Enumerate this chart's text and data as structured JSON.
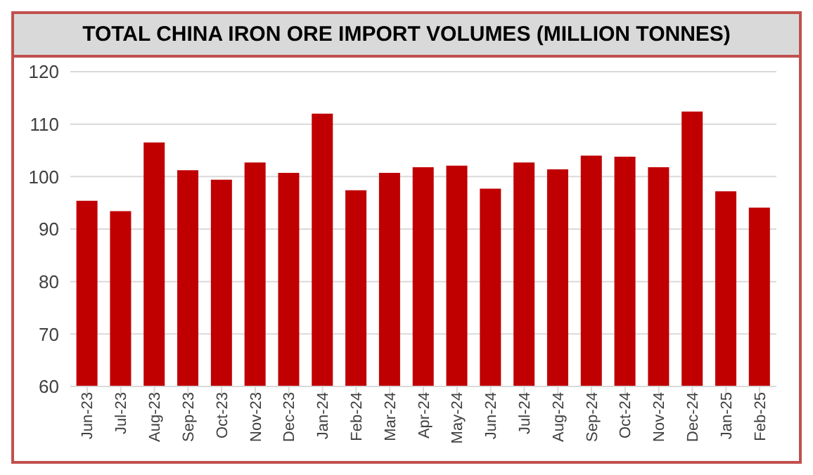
{
  "chart_data": {
    "type": "bar",
    "title": "TOTAL CHINA IRON ORE IMPORT VOLUMES (MILLION TONNES)",
    "categories": [
      "Jun-23",
      "Jul-23",
      "Aug-23",
      "Sep-23",
      "Oct-23",
      "Nov-23",
      "Dec-23",
      "Jan-24",
      "Feb-24",
      "Mar-24",
      "Apr-24",
      "May-24",
      "Jun-24",
      "Jul-24",
      "Aug-24",
      "Sep-24",
      "Oct-24",
      "Nov-24",
      "Dec-24",
      "Jan-25",
      "Feb-25"
    ],
    "values": [
      95.4,
      93.4,
      106.5,
      101.2,
      99.4,
      102.7,
      100.7,
      112.0,
      97.4,
      100.7,
      101.8,
      102.1,
      97.7,
      102.7,
      101.4,
      104.0,
      103.8,
      101.8,
      112.4,
      97.2,
      94.1
    ],
    "color": "#c00000",
    "ylim": [
      60,
      120
    ],
    "yticks": [
      60,
      70,
      80,
      90,
      100,
      110,
      120
    ],
    "grid": "y"
  }
}
